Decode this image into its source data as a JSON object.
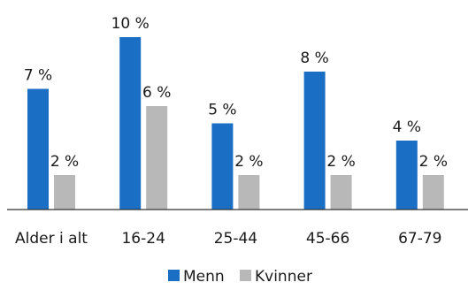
{
  "chart_data": {
    "type": "bar",
    "categories": [
      "Alder i alt",
      "16-24",
      "25-44",
      "45-66",
      "67-79"
    ],
    "series": [
      {
        "name": "Menn",
        "values": [
          7,
          10,
          5,
          8,
          4
        ],
        "labels": [
          "7 %",
          "10 %",
          "5 %",
          "8 %",
          "4 %"
        ],
        "color": "#1a6fc4"
      },
      {
        "name": "Kvinner",
        "values": [
          2,
          6,
          2,
          2,
          2
        ],
        "labels": [
          "2 %",
          "6 %",
          "2 %",
          "2 %",
          "2 %"
        ],
        "color": "#b8b8b8"
      }
    ],
    "ylim": [
      0,
      10
    ],
    "grid": false,
    "legend_position": "bottom",
    "axis_color": "#333333"
  }
}
